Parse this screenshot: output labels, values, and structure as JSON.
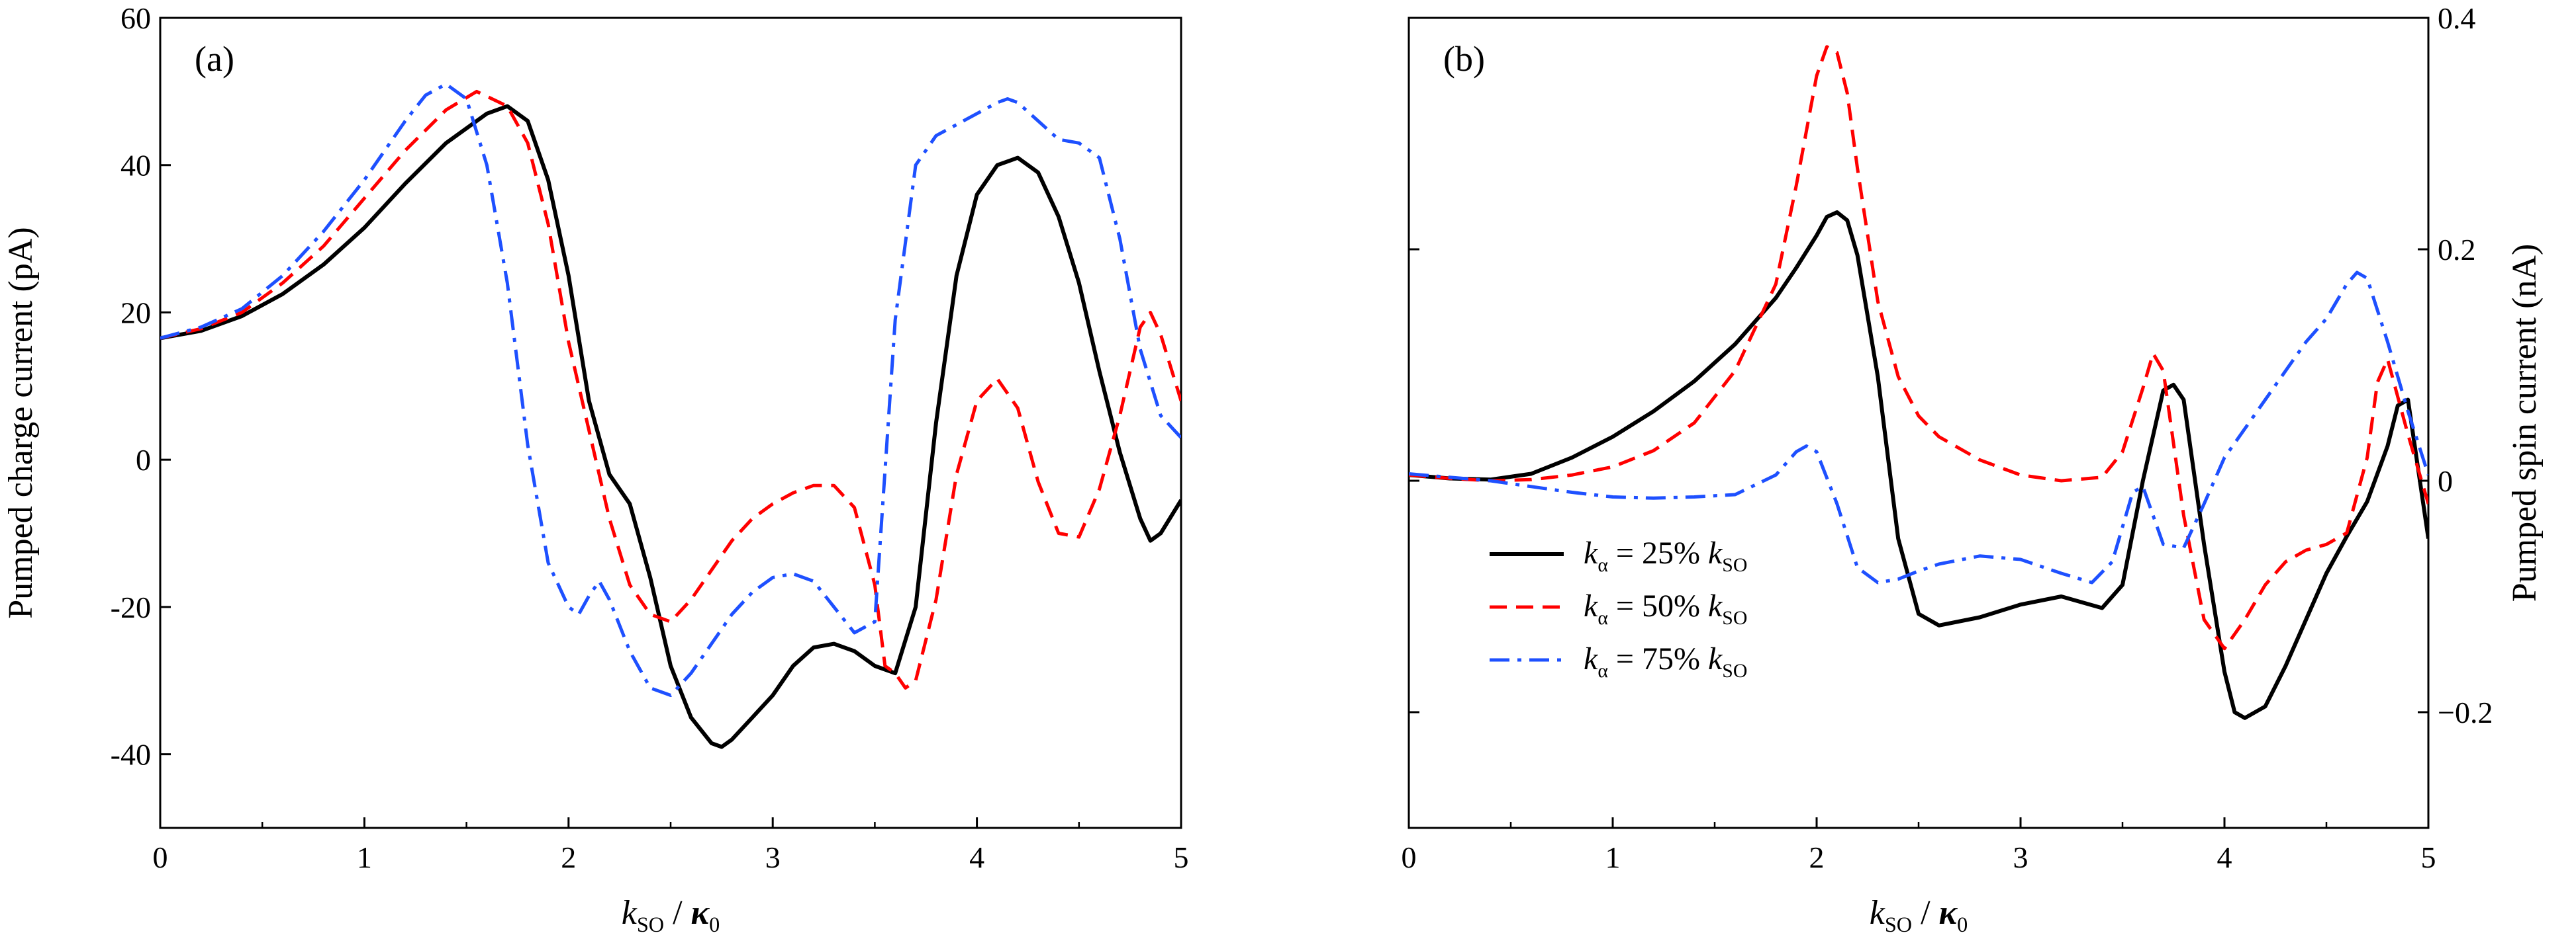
{
  "chart_data": [
    {
      "panel_label": "(a)",
      "type": "line",
      "xlabel": {
        "main": "k",
        "main_sub": "SO",
        "sep": " / ",
        "denom": "κ",
        "denom_sub": "0"
      },
      "ylabel": "Pumped charge current (pA)",
      "xlim": [
        0,
        5
      ],
      "ylim": [
        -50,
        60
      ],
      "xticks": [
        "0",
        "1",
        "2",
        "3",
        "4",
        "5"
      ],
      "yticks": [
        "-40",
        "-20",
        "0",
        "20",
        "40",
        "60"
      ],
      "grid": false,
      "series": [
        {
          "id": "k25",
          "color": "#000000",
          "dash": "solid",
          "x": [
            0,
            0.2,
            0.4,
            0.6,
            0.8,
            1.0,
            1.2,
            1.4,
            1.6,
            1.7,
            1.8,
            1.9,
            2.0,
            2.1,
            2.2,
            2.3,
            2.4,
            2.5,
            2.6,
            2.7,
            2.75,
            2.8,
            2.9,
            3.0,
            3.1,
            3.2,
            3.3,
            3.4,
            3.5,
            3.6,
            3.7,
            3.8,
            3.9,
            4.0,
            4.1,
            4.2,
            4.3,
            4.4,
            4.5,
            4.6,
            4.7,
            4.8,
            4.85,
            4.9,
            5.0
          ],
          "y": [
            16.5,
            17.5,
            19.5,
            22.5,
            26.5,
            31.5,
            37.5,
            43,
            47,
            48,
            46,
            38,
            25,
            8,
            -2,
            -6,
            -16,
            -28,
            -35,
            -38.5,
            -39,
            -38,
            -35,
            -32,
            -28,
            -25.5,
            -25,
            -26,
            -28,
            -29,
            -20,
            5,
            25,
            36,
            40,
            41,
            39,
            33,
            24,
            12,
            1,
            -8,
            -11,
            -10,
            -5.5
          ]
        },
        {
          "id": "k50",
          "color": "#ff0000",
          "dash": "dashed",
          "x": [
            0,
            0.2,
            0.4,
            0.6,
            0.8,
            1.0,
            1.2,
            1.4,
            1.55,
            1.7,
            1.8,
            1.9,
            2.0,
            2.1,
            2.2,
            2.3,
            2.4,
            2.5,
            2.6,
            2.7,
            2.8,
            2.9,
            3.0,
            3.1,
            3.2,
            3.3,
            3.4,
            3.5,
            3.55,
            3.6,
            3.65,
            3.7,
            3.8,
            3.9,
            4.0,
            4.1,
            4.2,
            4.3,
            4.4,
            4.5,
            4.6,
            4.7,
            4.8,
            4.85,
            4.9,
            5.0
          ],
          "y": [
            16.5,
            17.8,
            20,
            24,
            29,
            35.5,
            42,
            47.5,
            50,
            48,
            43,
            32,
            16,
            4,
            -8,
            -17,
            -21,
            -22,
            -19,
            -15,
            -11,
            -8,
            -6,
            -4.5,
            -3.5,
            -3.5,
            -6.5,
            -17,
            -28,
            -29,
            -31,
            -30,
            -19,
            -2,
            8,
            11,
            7,
            -3,
            -10,
            -10.5,
            -4,
            6,
            18,
            20,
            17,
            8
          ]
        },
        {
          "id": "k75",
          "color": "#1e50ff",
          "dash": "dashdot",
          "x": [
            0,
            0.2,
            0.4,
            0.6,
            0.8,
            1.0,
            1.2,
            1.3,
            1.4,
            1.5,
            1.6,
            1.7,
            1.8,
            1.9,
            2.0,
            2.05,
            2.1,
            2.15,
            2.2,
            2.3,
            2.4,
            2.5,
            2.6,
            2.7,
            2.8,
            2.9,
            3.0,
            3.1,
            3.2,
            3.3,
            3.4,
            3.5,
            3.6,
            3.7,
            3.8,
            3.9,
            4.0,
            4.1,
            4.15,
            4.2,
            4.3,
            4.4,
            4.5,
            4.6,
            4.7,
            4.8,
            4.9,
            5.0
          ],
          "y": [
            16.5,
            18,
            20.5,
            25,
            31,
            38,
            46,
            49.5,
            51,
            49,
            40,
            24,
            2,
            -14,
            -20,
            -21,
            -18.5,
            -16.5,
            -19,
            -26,
            -31,
            -32,
            -29,
            -25,
            -21,
            -18,
            -16,
            -15.5,
            -16.5,
            -20,
            -23.5,
            -22,
            19,
            40,
            44,
            45.5,
            47,
            48.5,
            49,
            48.5,
            46,
            43.5,
            43,
            41,
            30,
            15,
            6,
            3
          ]
        }
      ]
    },
    {
      "panel_label": "(b)",
      "type": "line",
      "xlabel": {
        "main": "k",
        "main_sub": "SO",
        "sep": " / ",
        "denom": "κ",
        "denom_sub": "0"
      },
      "ylabel": "Pumped spin current (nA)",
      "y_axis_side": "right",
      "xlim": [
        0,
        5
      ],
      "ylim": [
        -0.3,
        0.4
      ],
      "xticks": [
        "0",
        "1",
        "2",
        "3",
        "4",
        "5"
      ],
      "yticks": [
        "−0.2",
        "0",
        "0.2",
        "0.4"
      ],
      "ytick_values": [
        -0.2,
        0,
        0.2,
        0.4
      ],
      "grid": false,
      "legend_position": "lower-left",
      "series": [
        {
          "id": "k25",
          "name_parts": [
            "k",
            "α",
            " = 25% ",
            "k",
            "SO"
          ],
          "color": "#000000",
          "dash": "solid",
          "x": [
            0,
            0.2,
            0.4,
            0.6,
            0.8,
            1.0,
            1.2,
            1.4,
            1.6,
            1.8,
            1.9,
            2.0,
            2.05,
            2.1,
            2.15,
            2.2,
            2.3,
            2.4,
            2.5,
            2.6,
            2.8,
            3.0,
            3.2,
            3.4,
            3.5,
            3.6,
            3.7,
            3.75,
            3.8,
            3.9,
            4.0,
            4.05,
            4.1,
            4.2,
            4.3,
            4.4,
            4.5,
            4.6,
            4.7,
            4.8,
            4.85,
            4.9,
            5.0
          ],
          "y": [
            0.005,
            0.002,
            0.001,
            0.006,
            0.02,
            0.038,
            0.06,
            0.086,
            0.118,
            0.158,
            0.184,
            0.212,
            0.228,
            0.232,
            0.225,
            0.195,
            0.09,
            -0.05,
            -0.115,
            -0.125,
            -0.118,
            -0.107,
            -0.1,
            -0.11,
            -0.09,
            0.0,
            0.078,
            0.083,
            0.07,
            -0.055,
            -0.165,
            -0.2,
            -0.205,
            -0.195,
            -0.16,
            -0.12,
            -0.08,
            -0.048,
            -0.018,
            0.03,
            0.065,
            0.07,
            -0.05
          ]
        },
        {
          "id": "k50",
          "name_parts": [
            "k",
            "α",
            " = 50% ",
            "k",
            "SO"
          ],
          "color": "#ff0000",
          "dash": "dashed",
          "x": [
            0,
            0.2,
            0.4,
            0.6,
            0.8,
            1.0,
            1.2,
            1.4,
            1.6,
            1.8,
            1.9,
            2.0,
            2.05,
            2.1,
            2.15,
            2.2,
            2.3,
            2.4,
            2.5,
            2.6,
            2.8,
            3.0,
            3.2,
            3.4,
            3.5,
            3.6,
            3.65,
            3.7,
            3.8,
            3.9,
            4.0,
            4.1,
            4.2,
            4.3,
            4.4,
            4.5,
            4.6,
            4.7,
            4.75,
            4.8,
            4.9,
            5.0
          ],
          "y": [
            0.005,
            0.002,
            0.0,
            0.001,
            0.005,
            0.012,
            0.026,
            0.05,
            0.095,
            0.17,
            0.255,
            0.35,
            0.375,
            0.37,
            0.335,
            0.27,
            0.155,
            0.09,
            0.056,
            0.038,
            0.018,
            0.005,
            0.0,
            0.003,
            0.025,
            0.08,
            0.11,
            0.095,
            -0.03,
            -0.12,
            -0.145,
            -0.12,
            -0.09,
            -0.07,
            -0.06,
            -0.055,
            -0.045,
            0.02,
            0.085,
            0.105,
            0.04,
            -0.02
          ]
        },
        {
          "id": "k75",
          "name_parts": [
            "k",
            "α",
            " = 75% ",
            "k",
            "SO"
          ],
          "color": "#1e50ff",
          "dash": "dashdot",
          "x": [
            0,
            0.2,
            0.4,
            0.6,
            0.8,
            1.0,
            1.2,
            1.4,
            1.6,
            1.8,
            1.9,
            1.95,
            2.0,
            2.1,
            2.2,
            2.3,
            2.4,
            2.5,
            2.6,
            2.8,
            3.0,
            3.2,
            3.35,
            3.45,
            3.55,
            3.6,
            3.65,
            3.7,
            3.8,
            3.9,
            4.0,
            4.1,
            4.2,
            4.3,
            4.4,
            4.5,
            4.6,
            4.65,
            4.7,
            4.8,
            4.9,
            5.0
          ],
          "y": [
            0.006,
            0.003,
            0.0,
            -0.005,
            -0.01,
            -0.014,
            -0.015,
            -0.014,
            -0.012,
            0.005,
            0.025,
            0.03,
            0.025,
            -0.02,
            -0.075,
            -0.088,
            -0.085,
            -0.078,
            -0.072,
            -0.065,
            -0.068,
            -0.08,
            -0.088,
            -0.07,
            -0.01,
            -0.005,
            -0.03,
            -0.055,
            -0.058,
            -0.02,
            0.02,
            0.045,
            0.07,
            0.095,
            0.12,
            0.14,
            0.17,
            0.18,
            0.175,
            0.12,
            0.06,
            0.005
          ]
        }
      ]
    }
  ]
}
